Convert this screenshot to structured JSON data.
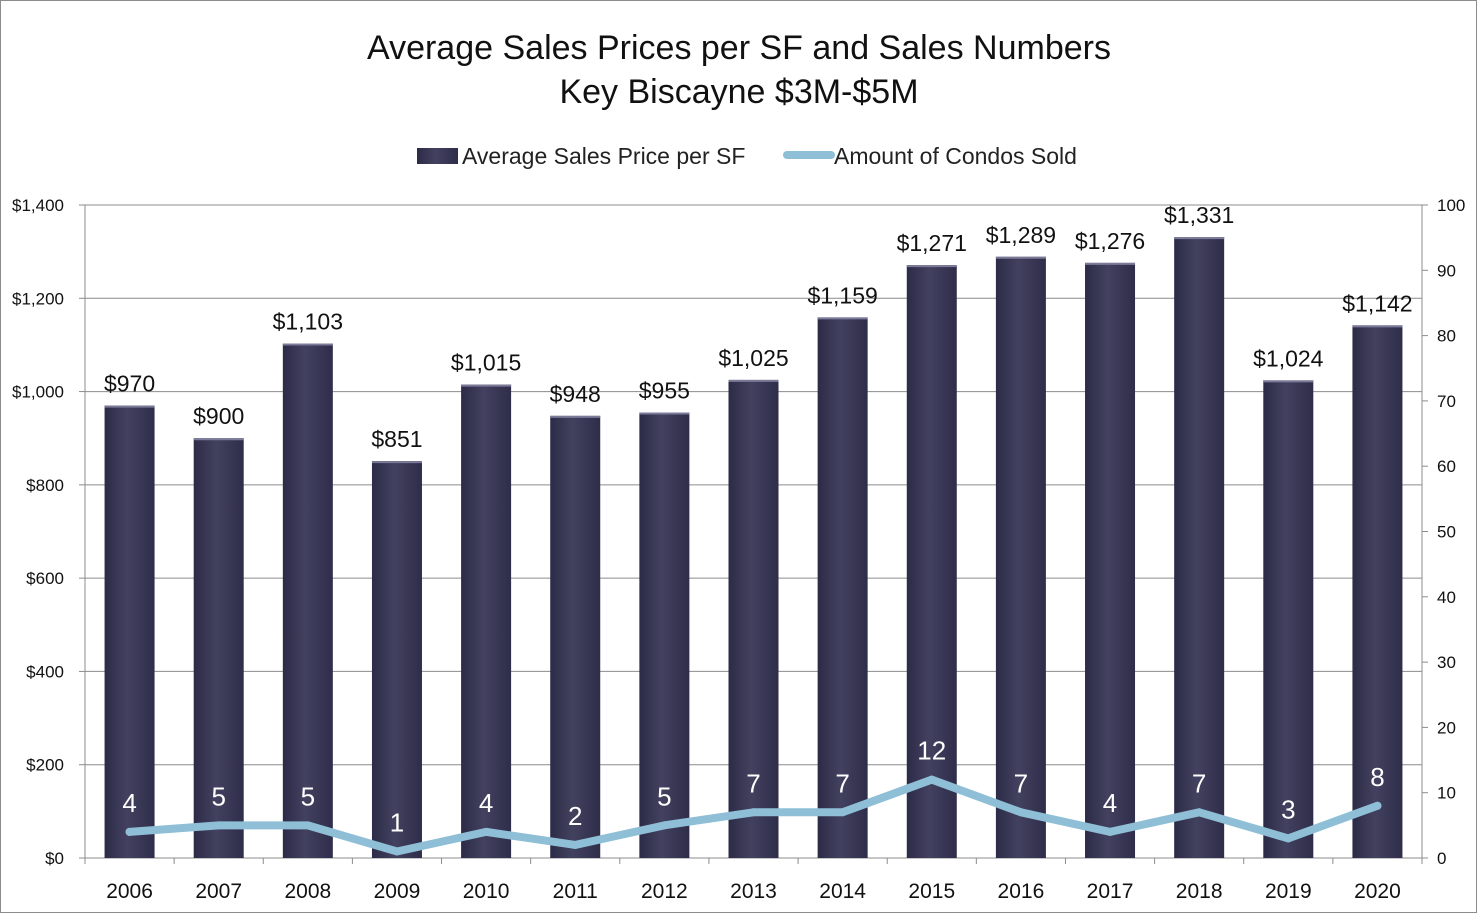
{
  "chart_data": {
    "type": "bar",
    "title": [
      "Average Sales Prices per SF and Sales Numbers",
      "Key Biscayne $3M-$5M"
    ],
    "categories": [
      "2006",
      "2007",
      "2008",
      "2009",
      "2010",
      "2011",
      "2012",
      "2013",
      "2014",
      "2015",
      "2016",
      "2017",
      "2018",
      "2019",
      "2020"
    ],
    "series": [
      {
        "name": "Average Sales Price per SF",
        "type": "bar",
        "axis": "left",
        "color": "#3b3a5a",
        "values": [
          970,
          900,
          1103,
          851,
          1015,
          948,
          955,
          1025,
          1159,
          1271,
          1289,
          1276,
          1331,
          1024,
          1142
        ],
        "labels": [
          "$970",
          "$900",
          "$1,103",
          "$851",
          "$1,015",
          "$948",
          "$955",
          "$1,025",
          "$1,159",
          "$1,271",
          "$1,289",
          "$1,276",
          "$1,331",
          "$1,024",
          "$1,142"
        ]
      },
      {
        "name": "Amount of Condos Sold",
        "type": "line",
        "axis": "right",
        "color": "#8fbfd6",
        "values": [
          4,
          5,
          5,
          1,
          4,
          2,
          5,
          7,
          7,
          12,
          7,
          4,
          7,
          3,
          8
        ],
        "labels": [
          "4",
          "5",
          "5",
          "1",
          "4",
          "2",
          "5",
          "7",
          "7",
          "12",
          "7",
          "4",
          "7",
          "3",
          "8"
        ]
      }
    ],
    "y_left": {
      "range": [
        0,
        1400
      ],
      "ticks": [
        0,
        200,
        400,
        600,
        800,
        1000,
        1200,
        1400
      ],
      "tick_labels": [
        "$0",
        "$200",
        "$400",
        "$600",
        "$800",
        "$1,000",
        "$1,200",
        "$1,400"
      ]
    },
    "y_right": {
      "range": [
        0,
        100
      ],
      "ticks": [
        0,
        10,
        20,
        30,
        40,
        50,
        60,
        70,
        80,
        90,
        100
      ],
      "tick_labels": [
        "0",
        "10",
        "20",
        "30",
        "40",
        "50",
        "60",
        "70",
        "80",
        "90",
        "100"
      ]
    },
    "grid": true,
    "legend_position": "top-center",
    "xlabel": "",
    "ylabel": ""
  }
}
